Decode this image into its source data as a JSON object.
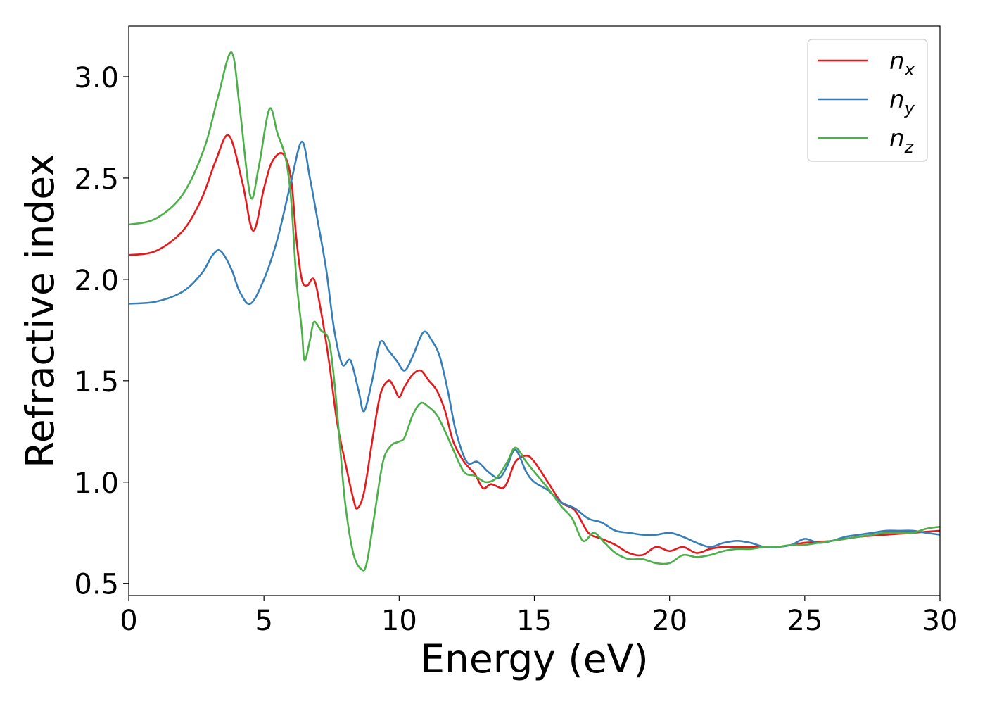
{
  "chart_data": {
    "type": "line",
    "title": "",
    "xlabel": "Energy (eV)",
    "ylabel": "Refractive index",
    "xlim": [
      0,
      30
    ],
    "ylim": [
      0.44,
      3.25
    ],
    "xticks": [
      0,
      5,
      10,
      15,
      20,
      25,
      30
    ],
    "xtick_labels": [
      "0",
      "5",
      "10",
      "15",
      "20",
      "25",
      "30"
    ],
    "yticks": [
      0.5,
      1.0,
      1.5,
      2.0,
      2.5,
      3.0
    ],
    "ytick_labels": [
      "0.5",
      "1.0",
      "1.5",
      "2.0",
      "2.5",
      "3.0"
    ],
    "grid": false,
    "legend_position": "top-right",
    "series": [
      {
        "name": "n_x",
        "label_base": "n",
        "label_sub": "x",
        "color": "#e41a1c",
        "points": [
          [
            0,
            2.12
          ],
          [
            1,
            2.14
          ],
          [
            2,
            2.24
          ],
          [
            2.7,
            2.4
          ],
          [
            3.2,
            2.58
          ],
          [
            3.7,
            2.71
          ],
          [
            4.2,
            2.48
          ],
          [
            4.6,
            2.24
          ],
          [
            5,
            2.45
          ],
          [
            5.3,
            2.58
          ],
          [
            5.7,
            2.62
          ],
          [
            6,
            2.5
          ],
          [
            6.2,
            2.2
          ],
          [
            6.4,
            2.0
          ],
          [
            6.6,
            1.97
          ],
          [
            6.85,
            2.0
          ],
          [
            7.1,
            1.85
          ],
          [
            7.4,
            1.6
          ],
          [
            7.7,
            1.3
          ],
          [
            8.0,
            1.1
          ],
          [
            8.3,
            0.92
          ],
          [
            8.45,
            0.87
          ],
          [
            8.7,
            0.95
          ],
          [
            9.0,
            1.2
          ],
          [
            9.3,
            1.43
          ],
          [
            9.6,
            1.5
          ],
          [
            9.8,
            1.47
          ],
          [
            10.0,
            1.42
          ],
          [
            10.2,
            1.47
          ],
          [
            10.5,
            1.53
          ],
          [
            10.8,
            1.55
          ],
          [
            11.1,
            1.5
          ],
          [
            11.4,
            1.45
          ],
          [
            11.7,
            1.35
          ],
          [
            12.0,
            1.2
          ],
          [
            12.4,
            1.1
          ],
          [
            12.8,
            1.04
          ],
          [
            13.1,
            0.97
          ],
          [
            13.4,
            0.99
          ],
          [
            13.8,
            0.97
          ],
          [
            14.0,
            1.0
          ],
          [
            14.3,
            1.1
          ],
          [
            14.7,
            1.13
          ],
          [
            15.0,
            1.1
          ],
          [
            15.5,
            1.0
          ],
          [
            16.0,
            0.9
          ],
          [
            16.5,
            0.86
          ],
          [
            17.0,
            0.75
          ],
          [
            17.5,
            0.72
          ],
          [
            18.0,
            0.69
          ],
          [
            18.5,
            0.65
          ],
          [
            19.0,
            0.64
          ],
          [
            19.5,
            0.68
          ],
          [
            20.0,
            0.66
          ],
          [
            20.5,
            0.68
          ],
          [
            21.0,
            0.65
          ],
          [
            21.5,
            0.67
          ],
          [
            22.0,
            0.68
          ],
          [
            23.0,
            0.68
          ],
          [
            24.0,
            0.68
          ],
          [
            25.0,
            0.7
          ],
          [
            26.0,
            0.71
          ],
          [
            27.0,
            0.73
          ],
          [
            28.0,
            0.74
          ],
          [
            29.0,
            0.75
          ],
          [
            30.0,
            0.76
          ]
        ]
      },
      {
        "name": "n_y",
        "label_base": "n",
        "label_sub": "y",
        "color": "#377eb8",
        "points": [
          [
            0,
            1.88
          ],
          [
            1,
            1.89
          ],
          [
            2,
            1.94
          ],
          [
            2.7,
            2.03
          ],
          [
            3.1,
            2.12
          ],
          [
            3.4,
            2.14
          ],
          [
            3.8,
            2.05
          ],
          [
            4.1,
            1.94
          ],
          [
            4.5,
            1.88
          ],
          [
            5,
            2.0
          ],
          [
            5.5,
            2.2
          ],
          [
            6.0,
            2.48
          ],
          [
            6.4,
            2.68
          ],
          [
            6.7,
            2.5
          ],
          [
            7.0,
            2.28
          ],
          [
            7.3,
            2.05
          ],
          [
            7.6,
            1.75
          ],
          [
            7.9,
            1.58
          ],
          [
            8.2,
            1.6
          ],
          [
            8.5,
            1.45
          ],
          [
            8.7,
            1.35
          ],
          [
            9.0,
            1.5
          ],
          [
            9.3,
            1.69
          ],
          [
            9.6,
            1.65
          ],
          [
            9.9,
            1.6
          ],
          [
            10.2,
            1.55
          ],
          [
            10.5,
            1.62
          ],
          [
            10.9,
            1.74
          ],
          [
            11.2,
            1.7
          ],
          [
            11.5,
            1.62
          ],
          [
            11.8,
            1.45
          ],
          [
            12.1,
            1.25
          ],
          [
            12.5,
            1.1
          ],
          [
            12.9,
            1.1
          ],
          [
            13.3,
            1.05
          ],
          [
            13.7,
            1.02
          ],
          [
            14.0,
            1.08
          ],
          [
            14.3,
            1.16
          ],
          [
            14.7,
            1.05
          ],
          [
            15.0,
            1.0
          ],
          [
            15.5,
            0.96
          ],
          [
            16.0,
            0.9
          ],
          [
            16.5,
            0.87
          ],
          [
            17.0,
            0.82
          ],
          [
            17.5,
            0.8
          ],
          [
            18.0,
            0.76
          ],
          [
            18.5,
            0.75
          ],
          [
            19.0,
            0.74
          ],
          [
            19.5,
            0.74
          ],
          [
            20.0,
            0.75
          ],
          [
            20.5,
            0.73
          ],
          [
            21.0,
            0.7
          ],
          [
            21.5,
            0.68
          ],
          [
            22.0,
            0.7
          ],
          [
            22.5,
            0.71
          ],
          [
            23.0,
            0.7
          ],
          [
            23.5,
            0.68
          ],
          [
            24.0,
            0.68
          ],
          [
            24.5,
            0.69
          ],
          [
            25.0,
            0.72
          ],
          [
            25.5,
            0.7
          ],
          [
            26.0,
            0.71
          ],
          [
            26.5,
            0.73
          ],
          [
            27.0,
            0.74
          ],
          [
            27.5,
            0.75
          ],
          [
            28.0,
            0.76
          ],
          [
            28.5,
            0.76
          ],
          [
            29.0,
            0.76
          ],
          [
            29.5,
            0.75
          ],
          [
            30.0,
            0.74
          ]
        ]
      },
      {
        "name": "n_z",
        "label_base": "n",
        "label_sub": "z",
        "color": "#4daf4a",
        "points": [
          [
            0,
            2.27
          ],
          [
            1,
            2.3
          ],
          [
            2,
            2.42
          ],
          [
            2.8,
            2.65
          ],
          [
            3.3,
            2.9
          ],
          [
            3.8,
            3.12
          ],
          [
            4.1,
            2.85
          ],
          [
            4.5,
            2.41
          ],
          [
            4.8,
            2.55
          ],
          [
            5.2,
            2.84
          ],
          [
            5.5,
            2.72
          ],
          [
            5.8,
            2.6
          ],
          [
            6.0,
            2.4
          ],
          [
            6.2,
            2.0
          ],
          [
            6.4,
            1.75
          ],
          [
            6.5,
            1.6
          ],
          [
            6.7,
            1.7
          ],
          [
            6.85,
            1.79
          ],
          [
            7.1,
            1.75
          ],
          [
            7.4,
            1.7
          ],
          [
            7.6,
            1.5
          ],
          [
            7.8,
            1.2
          ],
          [
            8.0,
            0.9
          ],
          [
            8.3,
            0.65
          ],
          [
            8.6,
            0.57
          ],
          [
            8.8,
            0.6
          ],
          [
            9.1,
            0.85
          ],
          [
            9.4,
            1.1
          ],
          [
            9.7,
            1.18
          ],
          [
            10.0,
            1.2
          ],
          [
            10.2,
            1.22
          ],
          [
            10.5,
            1.33
          ],
          [
            10.8,
            1.39
          ],
          [
            11.1,
            1.37
          ],
          [
            11.4,
            1.33
          ],
          [
            11.7,
            1.25
          ],
          [
            12.0,
            1.16
          ],
          [
            12.4,
            1.05
          ],
          [
            12.8,
            1.03
          ],
          [
            13.2,
            1.0
          ],
          [
            13.6,
            1.02
          ],
          [
            14.0,
            1.1
          ],
          [
            14.3,
            1.17
          ],
          [
            14.7,
            1.1
          ],
          [
            15.0,
            1.05
          ],
          [
            15.5,
            0.97
          ],
          [
            16.0,
            0.88
          ],
          [
            16.4,
            0.82
          ],
          [
            16.8,
            0.71
          ],
          [
            17.2,
            0.75
          ],
          [
            17.6,
            0.7
          ],
          [
            18.0,
            0.65
          ],
          [
            18.5,
            0.62
          ],
          [
            19.0,
            0.62
          ],
          [
            19.5,
            0.6
          ],
          [
            20.0,
            0.6
          ],
          [
            20.5,
            0.64
          ],
          [
            21.0,
            0.63
          ],
          [
            21.5,
            0.64
          ],
          [
            22.0,
            0.66
          ],
          [
            22.5,
            0.67
          ],
          [
            23.0,
            0.67
          ],
          [
            23.5,
            0.68
          ],
          [
            24.0,
            0.68
          ],
          [
            24.5,
            0.69
          ],
          [
            25.0,
            0.69
          ],
          [
            25.5,
            0.7
          ],
          [
            26.0,
            0.71
          ],
          [
            26.5,
            0.72
          ],
          [
            27.0,
            0.73
          ],
          [
            27.5,
            0.74
          ],
          [
            28.0,
            0.75
          ],
          [
            28.5,
            0.75
          ],
          [
            29.0,
            0.75
          ],
          [
            29.5,
            0.77
          ],
          [
            30.0,
            0.78
          ]
        ]
      }
    ]
  }
}
